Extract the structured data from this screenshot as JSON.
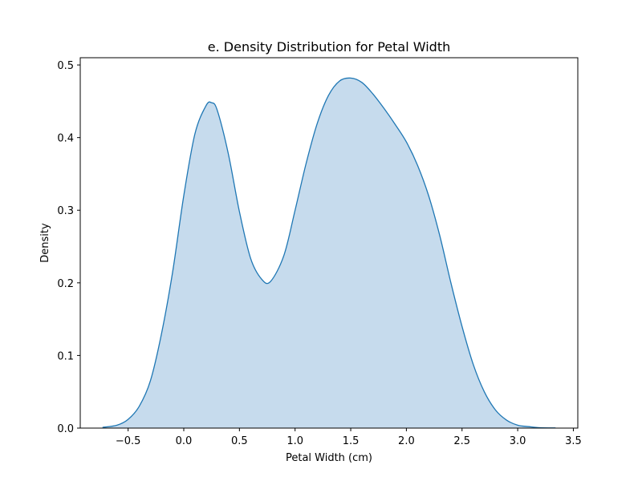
{
  "chart_data": {
    "type": "area",
    "title": "e. Density Distribution for Petal Width",
    "xlabel": "Petal Width (cm)",
    "ylabel": "Density",
    "xlim": [
      -0.93,
      3.54
    ],
    "ylim": [
      0.0,
      0.51
    ],
    "xticks": [
      -0.5,
      0.0,
      0.5,
      1.0,
      1.5,
      2.0,
      2.5,
      3.0,
      3.5
    ],
    "xtick_labels": [
      "−0.5",
      "0.0",
      "0.5",
      "1.0",
      "1.5",
      "2.0",
      "2.5",
      "3.0",
      "3.5"
    ],
    "yticks": [
      0.0,
      0.1,
      0.2,
      0.3,
      0.4,
      0.5
    ],
    "ytick_labels": [
      "0.0",
      "0.1",
      "0.2",
      "0.3",
      "0.4",
      "0.5"
    ],
    "grid": false,
    "line_color": "#1f77b4",
    "fill_color": "#c6dbed",
    "x": [
      -0.73,
      -0.6,
      -0.5,
      -0.4,
      -0.3,
      -0.2,
      -0.1,
      0.0,
      0.1,
      0.2,
      0.25,
      0.3,
      0.4,
      0.5,
      0.6,
      0.7,
      0.78,
      0.9,
      1.0,
      1.1,
      1.2,
      1.3,
      1.4,
      1.5,
      1.6,
      1.7,
      1.8,
      1.9,
      2.0,
      2.1,
      2.2,
      2.3,
      2.4,
      2.5,
      2.6,
      2.7,
      2.8,
      2.9,
      3.0,
      3.1,
      3.2,
      3.34
    ],
    "y": [
      0.001,
      0.004,
      0.012,
      0.03,
      0.065,
      0.13,
      0.215,
      0.32,
      0.405,
      0.444,
      0.448,
      0.438,
      0.378,
      0.298,
      0.234,
      0.205,
      0.202,
      0.238,
      0.3,
      0.365,
      0.42,
      0.458,
      0.478,
      0.482,
      0.476,
      0.46,
      0.44,
      0.418,
      0.394,
      0.362,
      0.32,
      0.265,
      0.2,
      0.14,
      0.088,
      0.05,
      0.025,
      0.011,
      0.004,
      0.002,
      0.0005,
      0.0002
    ]
  }
}
